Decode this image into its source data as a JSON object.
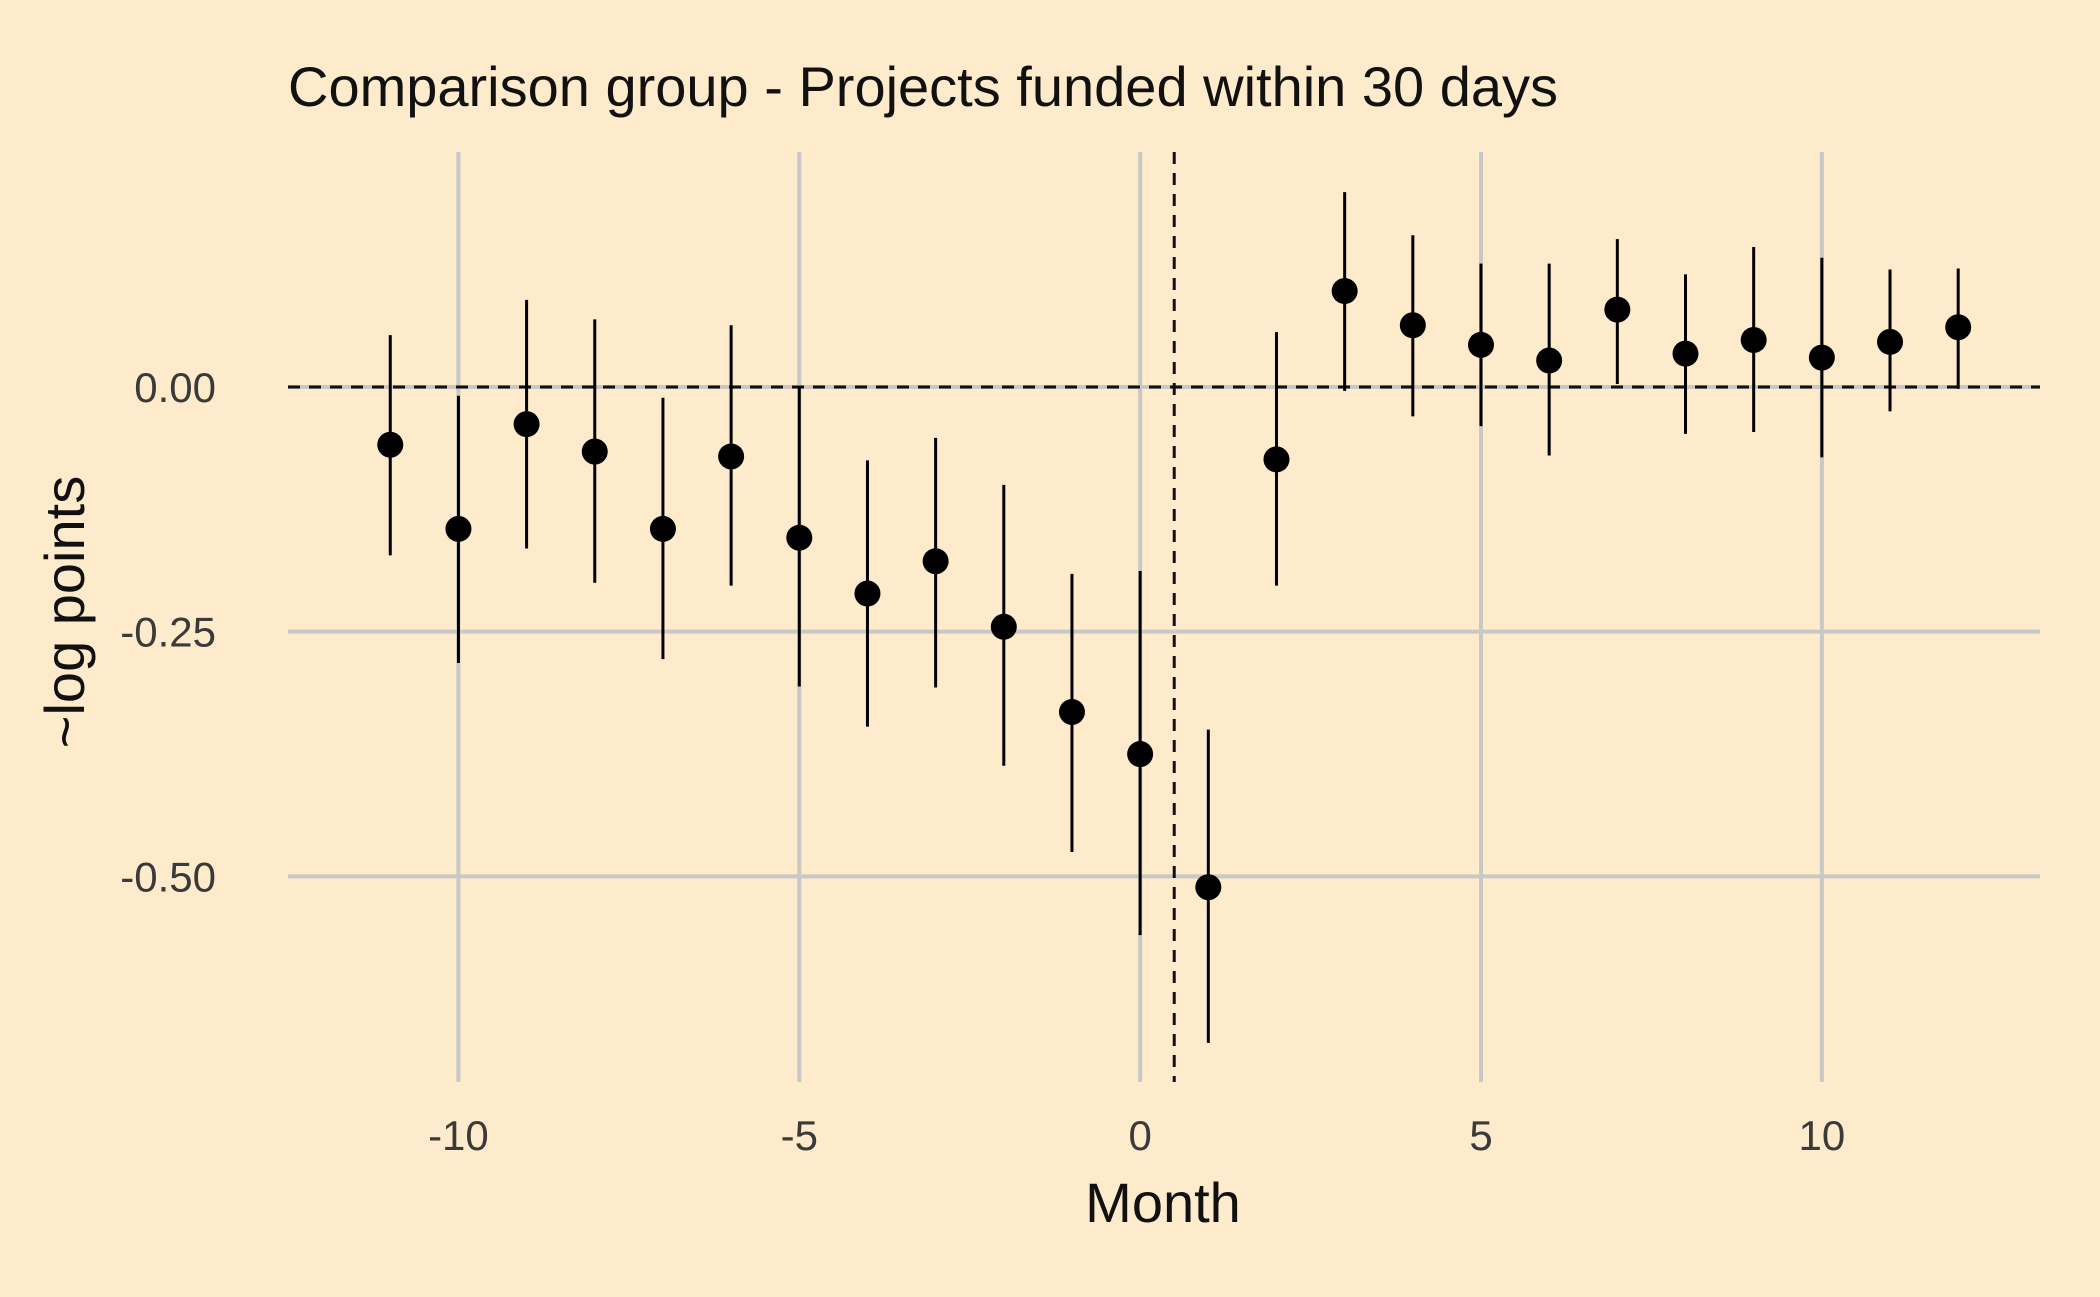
{
  "chart_data": {
    "type": "scatter",
    "title": "Comparison group - Projects funded within 30 days",
    "xlabel": "Month",
    "ylabel": "~log points",
    "xlim": [
      -12.5,
      13.2
    ],
    "ylim": [
      -0.71,
      0.24
    ],
    "x_ticks": [
      -10,
      -5,
      0,
      5,
      10
    ],
    "x_tick_labels": [
      "-10",
      "-5",
      "0",
      "5",
      "10"
    ],
    "y_ticks": [
      0,
      -0.25,
      -0.5
    ],
    "y_tick_labels": [
      "0.00",
      "-0.25",
      "-0.50"
    ],
    "grid": true,
    "horizontal_reference_line": 0,
    "vertical_reference_line": 0.5,
    "reference_line_style": "dashed",
    "series": [
      {
        "points": [
          {
            "x": -11,
            "y": -0.059,
            "low": -0.172,
            "high": 0.053
          },
          {
            "x": -10,
            "y": -0.145,
            "low": -0.282,
            "high": -0.009
          },
          {
            "x": -9,
            "y": -0.038,
            "low": -0.165,
            "high": 0.089
          },
          {
            "x": -8,
            "y": -0.066,
            "low": -0.2,
            "high": 0.069
          },
          {
            "x": -7,
            "y": -0.145,
            "low": -0.278,
            "high": -0.011
          },
          {
            "x": -6,
            "y": -0.071,
            "low": -0.203,
            "high": 0.063
          },
          {
            "x": -5,
            "y": -0.154,
            "low": -0.306,
            "high": 0.001
          },
          {
            "x": -4,
            "y": -0.211,
            "low": -0.347,
            "high": -0.075
          },
          {
            "x": -3,
            "y": -0.178,
            "low": -0.307,
            "high": -0.052
          },
          {
            "x": -2,
            "y": -0.245,
            "low": -0.387,
            "high": -0.1
          },
          {
            "x": -1,
            "y": -0.332,
            "low": -0.475,
            "high": -0.191
          },
          {
            "x": 0,
            "y": -0.375,
            "low": -0.56,
            "high": -0.188
          },
          {
            "x": 1,
            "y": -0.511,
            "low": -0.67,
            "high": -0.35
          },
          {
            "x": 2,
            "y": -0.074,
            "low": -0.203,
            "high": 0.056
          },
          {
            "x": 3,
            "y": 0.098,
            "low": -0.004,
            "high": 0.199
          },
          {
            "x": 4,
            "y": 0.063,
            "low": -0.03,
            "high": 0.155
          },
          {
            "x": 5,
            "y": 0.043,
            "low": -0.04,
            "high": 0.126
          },
          {
            "x": 6,
            "y": 0.027,
            "low": -0.07,
            "high": 0.126
          },
          {
            "x": 7,
            "y": 0.079,
            "low": 0.003,
            "high": 0.151
          },
          {
            "x": 8,
            "y": 0.034,
            "low": -0.048,
            "high": 0.115
          },
          {
            "x": 9,
            "y": 0.048,
            "low": -0.046,
            "high": 0.143
          },
          {
            "x": 10,
            "y": 0.03,
            "low": -0.072,
            "high": 0.132
          },
          {
            "x": 11,
            "y": 0.046,
            "low": -0.025,
            "high": 0.12
          },
          {
            "x": 12,
            "y": 0.061,
            "low": -0.002,
            "high": 0.121
          }
        ]
      }
    ],
    "colors": {
      "background": "#FDEBCB",
      "points": "#000000",
      "grid": "#C8C8C8"
    }
  }
}
